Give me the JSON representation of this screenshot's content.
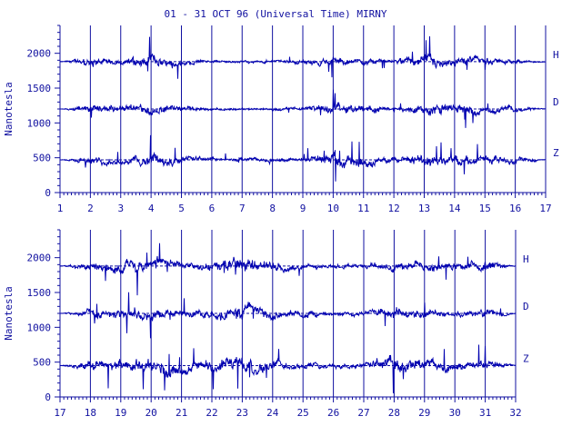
{
  "title": "01 - 31 OCT 96 (Universal Time) MIRNY",
  "colors": {
    "ink": "#1010a0",
    "trace": "#0000b0",
    "axis": "#1010a0"
  },
  "chart_data": [
    {
      "type": "line",
      "ylabel": "Nanotesla",
      "ylim": [
        0,
        2400
      ],
      "yticks": [
        0,
        500,
        1000,
        1500,
        2000
      ],
      "xlim": [
        1,
        17
      ],
      "xticks": [
        "1",
        "2",
        "3",
        "4",
        "5",
        "6",
        "7",
        "8",
        "9",
        "10",
        "11",
        "12",
        "13",
        "14",
        "15",
        "16",
        "17"
      ],
      "series": [
        {
          "name": "H",
          "baseline": 1880,
          "activity": [
            0,
            1.2,
            0.6,
            1.6,
            0.7,
            0.3,
            0.3,
            0.3,
            0.5,
            1.2,
            0.6,
            0.4,
            1.5,
            1.3,
            0.8,
            0.6,
            0
          ]
        },
        {
          "name": "D",
          "baseline": 1200,
          "activity": [
            0,
            1.0,
            0.9,
            1.3,
            0.6,
            0.3,
            0.3,
            0.3,
            0.4,
            1.3,
            0.9,
            0.4,
            1.2,
            1.5,
            0.7,
            0.8,
            0
          ]
        },
        {
          "name": "Z",
          "baseline": 470,
          "activity": [
            0,
            1.0,
            1.1,
            1.5,
            0.9,
            0.4,
            0.5,
            0.4,
            0.6,
            1.6,
            1.3,
            0.7,
            1.5,
            1.2,
            1.0,
            0.9,
            0
          ]
        }
      ]
    },
    {
      "type": "line",
      "ylabel": "Nanotesla",
      "ylim": [
        0,
        2400
      ],
      "yticks": [
        0,
        500,
        1000,
        1500,
        2000
      ],
      "xlim": [
        17,
        32
      ],
      "xticks": [
        "17",
        "18",
        "19",
        "20",
        "21",
        "22",
        "23",
        "24",
        "25",
        "26",
        "27",
        "28",
        "29",
        "30",
        "31",
        "32"
      ],
      "series": [
        {
          "name": "H",
          "baseline": 1880,
          "activity": [
            0,
            1.0,
            1.6,
            1.4,
            0.7,
            1.0,
            2.0,
            1.3,
            0.6,
            0.5,
            0.6,
            1.1,
            1.1,
            0.9,
            1.4,
            0
          ]
        },
        {
          "name": "D",
          "baseline": 1200,
          "activity": [
            0,
            0.9,
            1.2,
            1.3,
            0.8,
            1.2,
            1.6,
            1.1,
            0.8,
            0.5,
            0.6,
            1.5,
            1.0,
            0.8,
            1.1,
            0
          ]
        },
        {
          "name": "Z",
          "baseline": 450,
          "activity": [
            0,
            1.2,
            1.5,
            2.0,
            1.4,
            1.2,
            2.2,
            1.2,
            0.8,
            0.6,
            0.7,
            2.0,
            1.5,
            1.0,
            1.3,
            0
          ]
        }
      ]
    }
  ]
}
